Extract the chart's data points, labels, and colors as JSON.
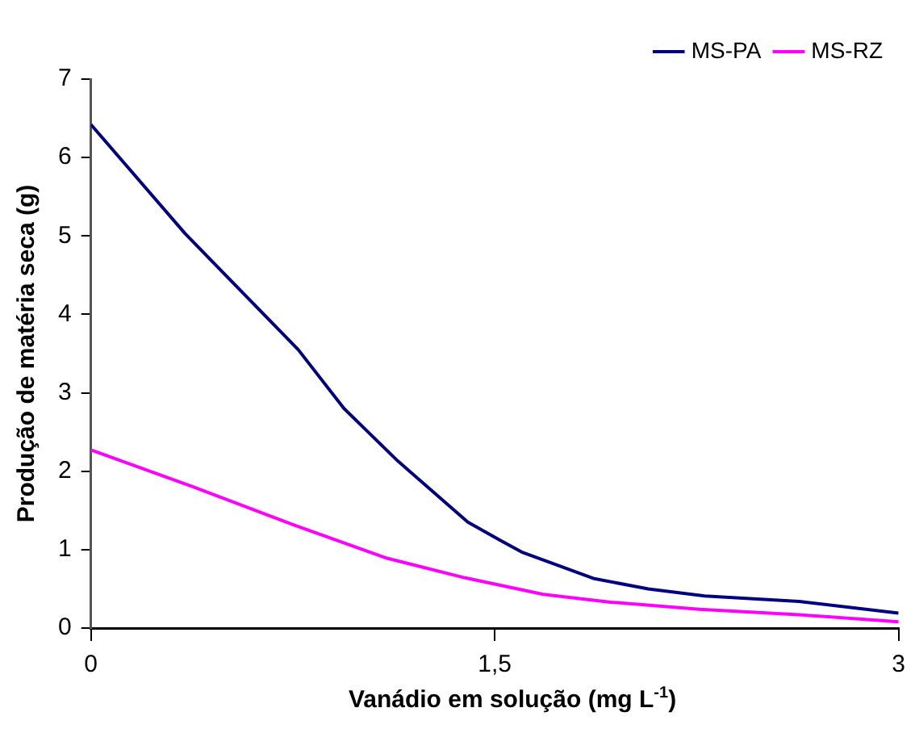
{
  "chart_data": {
    "type": "line",
    "xlabel": "Vanádio em solução (mg L$^{-1}$)",
    "ylabel": "Produção de matéria seca (g)",
    "xlim": [
      0,
      3
    ],
    "xticks": [
      0,
      {
        "value": 1.5,
        "label": "1,5"
      },
      3
    ],
    "ylim": [
      0,
      7
    ],
    "yticks": [
      0,
      1,
      2,
      3,
      4,
      5,
      6,
      7
    ],
    "grid": false,
    "legend": "top right",
    "marker": "none",
    "series": [
      {
        "name": "MS-PA",
        "color": "#000080",
        "x": [
          0,
          0.35,
          0.77,
          0.94,
          1.14,
          1.4,
          1.52,
          1.6,
          1.87,
          2.07,
          2.28,
          2.63,
          3
        ],
        "values": [
          6.42,
          5.03,
          3.55,
          2.8,
          2.13,
          1.35,
          1.12,
          0.97,
          0.63,
          0.5,
          0.41,
          0.34,
          0.19
        ]
      },
      {
        "name": "MS-RZ",
        "color": "#ff00ff",
        "x": [
          0,
          0.38,
          0.75,
          1.1,
          1.39,
          1.68,
          1.93,
          2.26,
          2.63,
          3
        ],
        "values": [
          2.27,
          1.8,
          1.32,
          0.89,
          0.64,
          0.43,
          0.33,
          0.24,
          0.17,
          0.08
        ]
      }
    ]
  }
}
